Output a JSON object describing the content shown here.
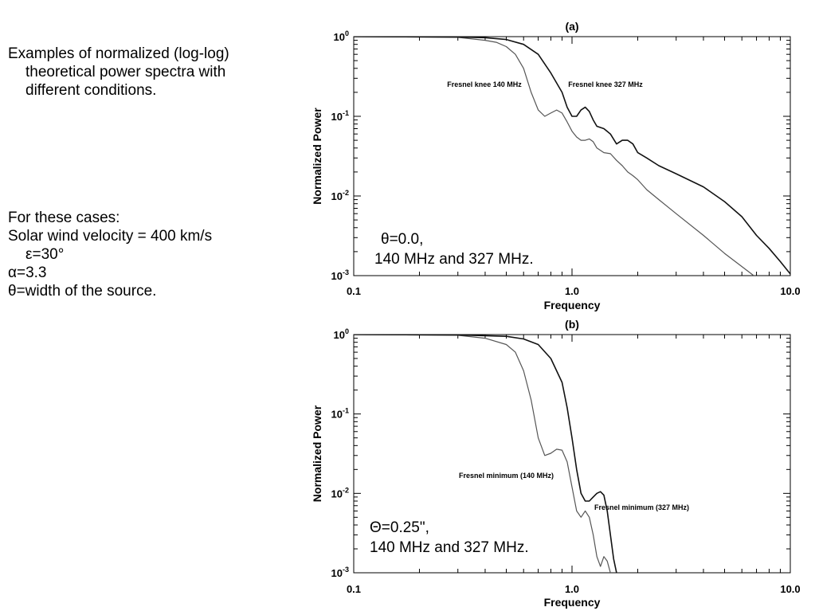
{
  "left_text": {
    "intro": [
      "Examples of normalized (log-log)",
      "theoretical power spectra with",
      "different conditions."
    ],
    "cases": [
      "For these cases:",
      "Solar wind velocity = 400 km/s",
      "ε=30°",
      "α=3.3",
      "θ=width of the source."
    ]
  },
  "chart_data": [
    {
      "type": "line",
      "title": "(a)",
      "xlabel": "Frequency",
      "ylabel": "Normalized Power",
      "xscale": "log",
      "yscale": "log",
      "xlim": [
        0.1,
        10.0
      ],
      "ylim": [
        0.001,
        1.0
      ],
      "xtick_labels": [
        "0.1",
        "1.0",
        "10.0"
      ],
      "ytick_labels": [
        {
          "base": "10",
          "exp": "0"
        },
        {
          "base": "10",
          "exp": "-1"
        },
        {
          "base": "10",
          "exp": "-2"
        },
        {
          "base": "10",
          "exp": "-3"
        }
      ],
      "annotations": [
        "Fresnel knee 140 MHz",
        "Fresnel knee 327 MHz"
      ],
      "inset_text": [
        "θ=0.0,",
        "140 MHz and 327 MHz."
      ],
      "series": [
        {
          "color": "#555555",
          "x": [
            0.1,
            0.3,
            0.4,
            0.45,
            0.5,
            0.55,
            0.6,
            0.65,
            0.7,
            0.75,
            0.8,
            0.85,
            0.9,
            0.95,
            1.0,
            1.05,
            1.1,
            1.15,
            1.2,
            1.25,
            1.3,
            1.4,
            1.5,
            1.6,
            1.7,
            1.8,
            1.9,
            2.0,
            2.2,
            2.5,
            3.0,
            4.0,
            5.0,
            6.0,
            6.8
          ],
          "y": [
            1.0,
            0.98,
            0.9,
            0.85,
            0.75,
            0.6,
            0.4,
            0.2,
            0.12,
            0.1,
            0.11,
            0.12,
            0.11,
            0.085,
            0.065,
            0.055,
            0.05,
            0.05,
            0.052,
            0.048,
            0.04,
            0.035,
            0.034,
            0.028,
            0.024,
            0.02,
            0.018,
            0.016,
            0.012,
            0.009,
            0.006,
            0.0032,
            0.0019,
            0.0013,
            0.001
          ]
        },
        {
          "color": "#111111",
          "x": [
            0.1,
            0.3,
            0.4,
            0.5,
            0.6,
            0.7,
            0.8,
            0.9,
            0.95,
            1.0,
            1.05,
            1.1,
            1.15,
            1.2,
            1.25,
            1.3,
            1.4,
            1.5,
            1.6,
            1.7,
            1.8,
            1.9,
            2.0,
            2.2,
            2.5,
            3.0,
            4.0,
            5.0,
            6.0,
            7.0,
            8.0,
            9.0,
            10.0
          ],
          "y": [
            1.0,
            0.99,
            0.97,
            0.92,
            0.8,
            0.6,
            0.35,
            0.2,
            0.13,
            0.1,
            0.1,
            0.12,
            0.13,
            0.115,
            0.09,
            0.075,
            0.07,
            0.06,
            0.045,
            0.05,
            0.05,
            0.045,
            0.035,
            0.03,
            0.024,
            0.019,
            0.013,
            0.0085,
            0.0055,
            0.0032,
            0.0022,
            0.0015,
            0.00105
          ]
        }
      ]
    },
    {
      "type": "line",
      "title": "(b)",
      "xlabel": "Frequency",
      "ylabel": "Normalized Power",
      "xscale": "log",
      "yscale": "log",
      "xlim": [
        0.1,
        10.0
      ],
      "ylim": [
        0.001,
        1.0
      ],
      "xtick_labels": [
        "0.1",
        "1.0",
        "10.0"
      ],
      "ytick_labels": [
        {
          "base": "10",
          "exp": "0"
        },
        {
          "base": "10",
          "exp": "-1"
        },
        {
          "base": "10",
          "exp": "-2"
        },
        {
          "base": "10",
          "exp": "-3"
        }
      ],
      "annotations": [
        "Fresnel minimum (140 MHz)",
        "Fresnel minimum (327 MHz)"
      ],
      "inset_text": [
        "Θ=0.25\",",
        "140 MHz and 327 MHz."
      ],
      "series": [
        {
          "color": "#555555",
          "x": [
            0.1,
            0.3,
            0.4,
            0.5,
            0.55,
            0.6,
            0.65,
            0.7,
            0.75,
            0.8,
            0.85,
            0.9,
            0.95,
            1.0,
            1.05,
            1.1,
            1.15,
            1.2,
            1.25,
            1.3,
            1.35,
            1.4,
            1.45,
            1.5
          ],
          "y": [
            1.0,
            0.98,
            0.9,
            0.75,
            0.6,
            0.35,
            0.15,
            0.05,
            0.03,
            0.032,
            0.036,
            0.035,
            0.025,
            0.012,
            0.006,
            0.005,
            0.006,
            0.005,
            0.003,
            0.0016,
            0.0012,
            0.0016,
            0.0014,
            0.001
          ]
        },
        {
          "color": "#111111",
          "x": [
            0.1,
            0.3,
            0.5,
            0.6,
            0.7,
            0.8,
            0.9,
            0.95,
            1.0,
            1.05,
            1.1,
            1.15,
            1.2,
            1.25,
            1.3,
            1.35,
            1.4,
            1.45,
            1.5,
            1.55,
            1.6
          ],
          "y": [
            1.0,
            0.99,
            0.95,
            0.88,
            0.75,
            0.5,
            0.25,
            0.12,
            0.05,
            0.02,
            0.01,
            0.008,
            0.008,
            0.009,
            0.01,
            0.0105,
            0.0095,
            0.006,
            0.003,
            0.0015,
            0.001
          ]
        }
      ]
    }
  ]
}
